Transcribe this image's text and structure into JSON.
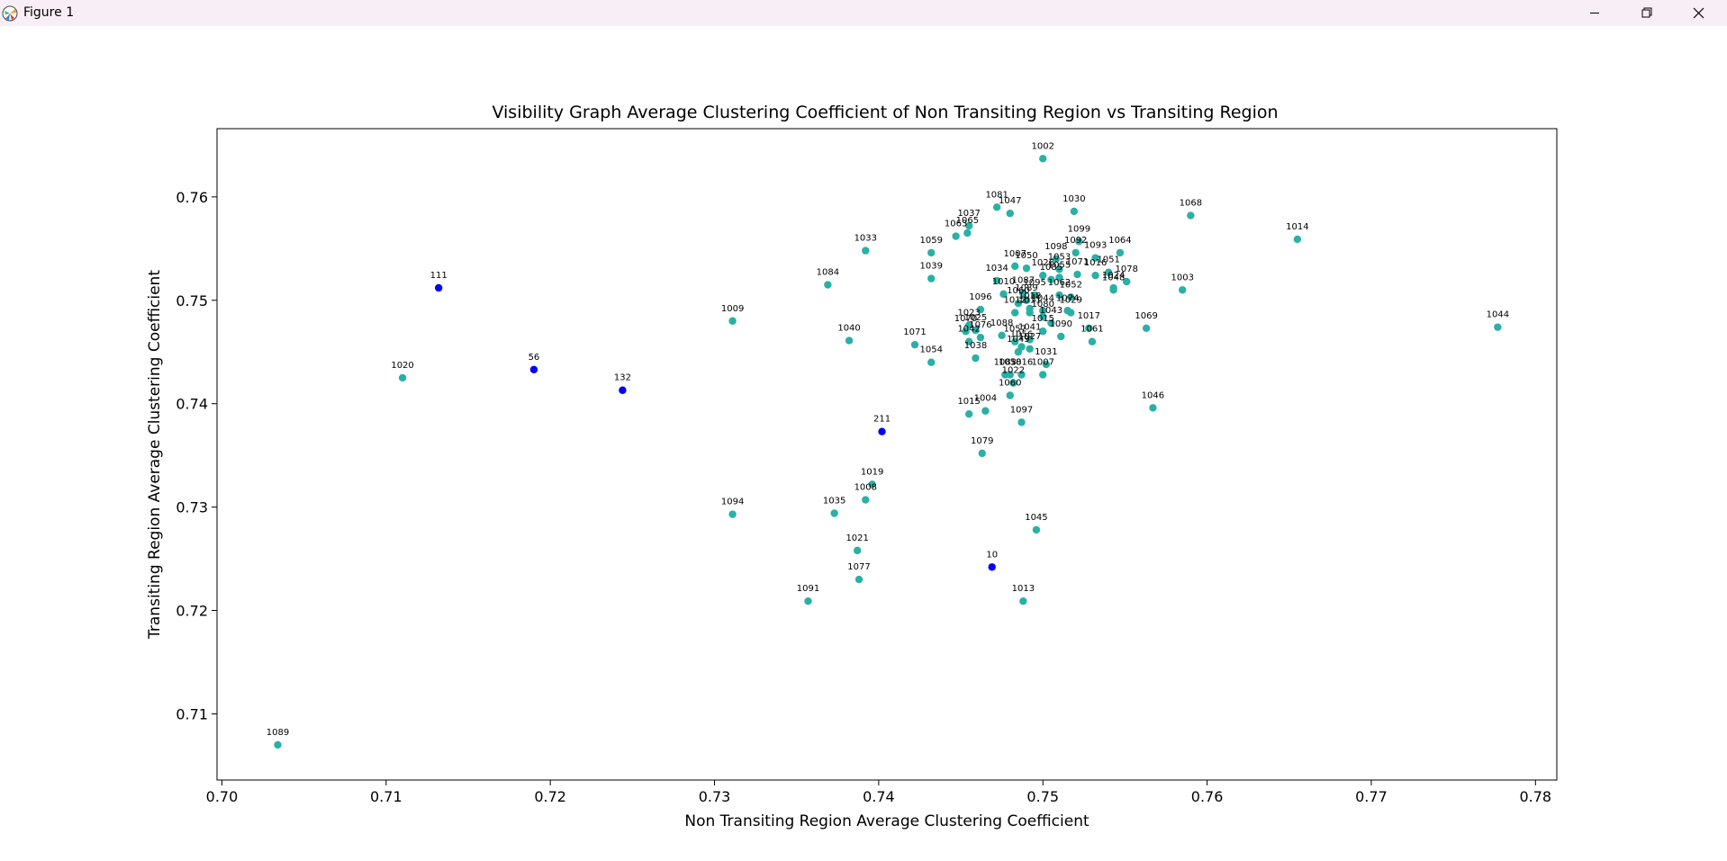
{
  "window": {
    "title": "Figure 1"
  },
  "colors": {
    "transiting": "#2ab0a5",
    "highlight": "#0000ff",
    "titlebar": "#f8eef5"
  },
  "chart_data": {
    "type": "scatter",
    "title": "Visibility Graph Average Clustering Coefficient of Non Transiting Region vs Transiting Region",
    "xlabel": "Non Transiting Region Average Clustering Coefficient",
    "ylabel": "Transiting Region Average Clustering Coefficient",
    "xlim": [
      0.6997,
      0.7813
    ],
    "ylim": [
      0.7036,
      0.7666
    ],
    "xticks": [
      0.7,
      0.71,
      0.72,
      0.73,
      0.74,
      0.75,
      0.76,
      0.77,
      0.78
    ],
    "xtick_labels": [
      "0.70",
      "0.71",
      "0.72",
      "0.73",
      "0.74",
      "0.75",
      "0.76",
      "0.77",
      "0.78"
    ],
    "yticks": [
      0.71,
      0.72,
      0.73,
      0.74,
      0.75,
      0.76
    ],
    "ytick_labels": [
      "0.71",
      "0.72",
      "0.73",
      "0.74",
      "0.75",
      "0.76"
    ],
    "grid": false,
    "series": [
      {
        "color": "#2ab0a5",
        "points": [
          {
            "label": "1002",
            "x": 0.75,
            "y": 0.7637
          },
          {
            "label": "1081",
            "x": 0.7472,
            "y": 0.759
          },
          {
            "label": "1047",
            "x": 0.748,
            "y": 0.7584
          },
          {
            "label": "1030",
            "x": 0.7519,
            "y": 0.7586
          },
          {
            "label": "1068",
            "x": 0.759,
            "y": 0.7582
          },
          {
            "label": "1037",
            "x": 0.7455,
            "y": 0.7572
          },
          {
            "label": "1065",
            "x": 0.7454,
            "y": 0.7565
          },
          {
            "label": "1063",
            "x": 0.7447,
            "y": 0.7562
          },
          {
            "label": "1014",
            "x": 0.7655,
            "y": 0.7559
          },
          {
            "label": "1099",
            "x": 0.7522,
            "y": 0.7557
          },
          {
            "label": "1033",
            "x": 0.7392,
            "y": 0.7548
          },
          {
            "label": "1059",
            "x": 0.7432,
            "y": 0.7546
          },
          {
            "label": "1064",
            "x": 0.7547,
            "y": 0.7546
          },
          {
            "label": "1098",
            "x": 0.7508,
            "y": 0.754
          },
          {
            "label": "1092",
            "x": 0.752,
            "y": 0.7546
          },
          {
            "label": "1093",
            "x": 0.7532,
            "y": 0.7541
          },
          {
            "label": "1007",
            "x": 0.7483,
            "y": 0.7533
          },
          {
            "label": "1050",
            "x": 0.749,
            "y": 0.7531
          },
          {
            "label": "1053",
            "x": 0.751,
            "y": 0.753
          },
          {
            "label": "1034",
            "x": 0.7472,
            "y": 0.7519
          },
          {
            "label": "1026",
            "x": 0.75,
            "y": 0.7524
          },
          {
            "label": "1051",
            "x": 0.754,
            "y": 0.7527
          },
          {
            "label": "1078",
            "x": 0.7551,
            "y": 0.7518
          },
          {
            "label": "1016",
            "x": 0.7532,
            "y": 0.7524
          },
          {
            "label": "1071",
            "x": 0.7521,
            "y": 0.7525
          },
          {
            "label": "1039",
            "x": 0.7432,
            "y": 0.7521
          },
          {
            "label": "1085",
            "x": 0.7505,
            "y": 0.752
          },
          {
            "label": "1055",
            "x": 0.751,
            "y": 0.7522
          },
          {
            "label": "1003",
            "x": 0.7585,
            "y": 0.751
          },
          {
            "label": "1084",
            "x": 0.7369,
            "y": 0.7515
          },
          {
            "label": "1024",
            "x": 0.7543,
            "y": 0.7512
          },
          {
            "label": "1048",
            "x": 0.7543,
            "y": 0.751
          },
          {
            "label": "1087",
            "x": 0.7488,
            "y": 0.7507
          },
          {
            "label": "1052",
            "x": 0.7517,
            "y": 0.7503
          },
          {
            "label": "1010",
            "x": 0.7476,
            "y": 0.7506
          },
          {
            "label": "1062",
            "x": 0.751,
            "y": 0.7505
          },
          {
            "label": "1095",
            "x": 0.7495,
            "y": 0.7505
          },
          {
            "label": "1096",
            "x": 0.7462,
            "y": 0.7491
          },
          {
            "label": "1060",
            "x": 0.7485,
            "y": 0.7497
          },
          {
            "label": "1089b",
            "x": 0.749,
            "y": 0.75
          },
          {
            "label": "1012",
            "x": 0.7483,
            "y": 0.7488
          },
          {
            "label": "1074",
            "x": 0.7515,
            "y": 0.749
          },
          {
            "label": "1029",
            "x": 0.7517,
            "y": 0.7488
          },
          {
            "label": "1044b",
            "x": 0.75,
            "y": 0.749
          },
          {
            "label": "1018",
            "x": 0.7492,
            "y": 0.7492
          },
          {
            "label": "1080",
            "x": 0.75,
            "y": 0.7484
          },
          {
            "label": "1011",
            "x": 0.7492,
            "y": 0.7488
          },
          {
            "label": "1023",
            "x": 0.7455,
            "y": 0.7476
          },
          {
            "label": "1009",
            "x": 0.7311,
            "y": 0.748
          },
          {
            "label": "1043",
            "x": 0.7505,
            "y": 0.7478
          },
          {
            "label": "1017",
            "x": 0.7528,
            "y": 0.7473
          },
          {
            "label": "1069",
            "x": 0.7563,
            "y": 0.7473
          },
          {
            "label": "1044",
            "x": 0.7777,
            "y": 0.7474
          },
          {
            "label": "1070",
            "x": 0.7453,
            "y": 0.747
          },
          {
            "label": "1025",
            "x": 0.7459,
            "y": 0.7471
          },
          {
            "label": "1015",
            "x": 0.75,
            "y": 0.747
          },
          {
            "label": "1090",
            "x": 0.7511,
            "y": 0.7465
          },
          {
            "label": "1088",
            "x": 0.7475,
            "y": 0.7466
          },
          {
            "label": "1042",
            "x": 0.7455,
            "y": 0.746
          },
          {
            "label": "1076",
            "x": 0.7462,
            "y": 0.7464
          },
          {
            "label": "1057",
            "x": 0.7483,
            "y": 0.746
          },
          {
            "label": "1041",
            "x": 0.7492,
            "y": 0.7462
          },
          {
            "label": "1061",
            "x": 0.753,
            "y": 0.746
          },
          {
            "label": "1040",
            "x": 0.7382,
            "y": 0.7461
          },
          {
            "label": "1071b",
            "x": 0.7422,
            "y": 0.7457
          },
          {
            "label": "1056",
            "x": 0.7487,
            "y": 0.7455
          },
          {
            "label": "1027",
            "x": 0.7492,
            "y": 0.7453
          },
          {
            "label": "1049",
            "x": 0.7485,
            "y": 0.745
          },
          {
            "label": "1054",
            "x": 0.7432,
            "y": 0.744
          },
          {
            "label": "1038",
            "x": 0.7459,
            "y": 0.7444
          },
          {
            "label": "1031",
            "x": 0.7502,
            "y": 0.7438
          },
          {
            "label": "1083",
            "x": 0.7477,
            "y": 0.7428
          },
          {
            "label": "1058",
            "x": 0.748,
            "y": 0.7428
          },
          {
            "label": "1016b",
            "x": 0.7487,
            "y": 0.7428
          },
          {
            "label": "1007b",
            "x": 0.75,
            "y": 0.7428
          },
          {
            "label": "1022",
            "x": 0.7482,
            "y": 0.742
          },
          {
            "label": "1060b",
            "x": 0.748,
            "y": 0.7408
          },
          {
            "label": "1015b",
            "x": 0.7455,
            "y": 0.739
          },
          {
            "label": "1004",
            "x": 0.7465,
            "y": 0.7393
          },
          {
            "label": "1097",
            "x": 0.7487,
            "y": 0.7382
          },
          {
            "label": "1046",
            "x": 0.7567,
            "y": 0.7396
          },
          {
            "label": "1079",
            "x": 0.7463,
            "y": 0.7352
          },
          {
            "label": "1020",
            "x": 0.711,
            "y": 0.7425
          },
          {
            "label": "1019",
            "x": 0.7396,
            "y": 0.7322
          },
          {
            "label": "1008",
            "x": 0.7392,
            "y": 0.7307
          },
          {
            "label": "1094",
            "x": 0.7311,
            "y": 0.7293
          },
          {
            "label": "1035",
            "x": 0.7373,
            "y": 0.7294
          },
          {
            "label": "1045",
            "x": 0.7496,
            "y": 0.7278
          },
          {
            "label": "1021",
            "x": 0.7387,
            "y": 0.7258
          },
          {
            "label": "1077",
            "x": 0.7388,
            "y": 0.723
          },
          {
            "label": "1091",
            "x": 0.7357,
            "y": 0.7209
          },
          {
            "label": "1013",
            "x": 0.7488,
            "y": 0.7209
          },
          {
            "label": "1089",
            "x": 0.7034,
            "y": 0.707
          }
        ]
      },
      {
        "color": "#0000ff",
        "points": [
          {
            "label": "111",
            "x": 0.7132,
            "y": 0.7512
          },
          {
            "label": "56",
            "x": 0.719,
            "y": 0.7433
          },
          {
            "label": "132",
            "x": 0.7244,
            "y": 0.7413
          },
          {
            "label": "211",
            "x": 0.7402,
            "y": 0.7373
          },
          {
            "label": "10",
            "x": 0.7469,
            "y": 0.7242
          }
        ]
      }
    ]
  }
}
